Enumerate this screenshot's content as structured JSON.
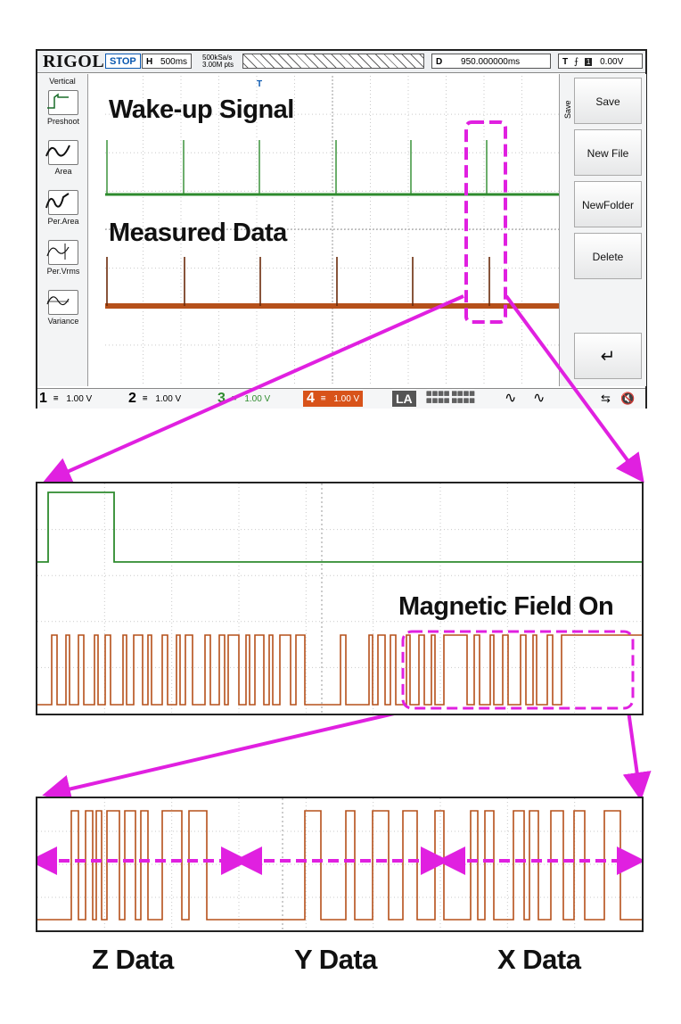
{
  "scope": {
    "brand": "RIGOL",
    "status": "STOP",
    "timebase_label": "H",
    "timebase": "500ms",
    "sample_rate": "500kSa/s",
    "memory_depth": "3.00M pts",
    "delay_label": "D",
    "delay": "950.000000ms",
    "trigger_label": "T",
    "trigger_level": "0.00V",
    "left_menu_title": "Vertical",
    "left_menu": [
      {
        "label": "Preshoot",
        "icon": "preshoot-icon"
      },
      {
        "label": "Area",
        "icon": "area-icon"
      },
      {
        "label": "Per.Area",
        "icon": "per-area-icon"
      },
      {
        "label": "Per.Vrms",
        "icon": "per-vrms-icon"
      },
      {
        "label": "Variance",
        "icon": "variance-icon"
      }
    ],
    "save_tag": "Save",
    "right_menu": [
      "Save",
      "New File",
      "NewFolder",
      "Delete"
    ],
    "channels": [
      {
        "num": "1",
        "scale": "1.00 V"
      },
      {
        "num": "2",
        "scale": "1.00 V"
      },
      {
        "num": "3",
        "scale": "1.00 V"
      },
      {
        "num": "4",
        "scale": "1.00 V"
      }
    ],
    "la_label": "LA",
    "colors": {
      "ch3": "#2e8b2e",
      "ch4": "#b5501a",
      "highlight": "#e020e0"
    }
  },
  "labels": {
    "wake_up": "Wake-up Signal",
    "measured": "Measured Data",
    "magnetic": "Magnetic Field On",
    "z": "Z Data",
    "y": "Y Data",
    "x": "X Data"
  }
}
